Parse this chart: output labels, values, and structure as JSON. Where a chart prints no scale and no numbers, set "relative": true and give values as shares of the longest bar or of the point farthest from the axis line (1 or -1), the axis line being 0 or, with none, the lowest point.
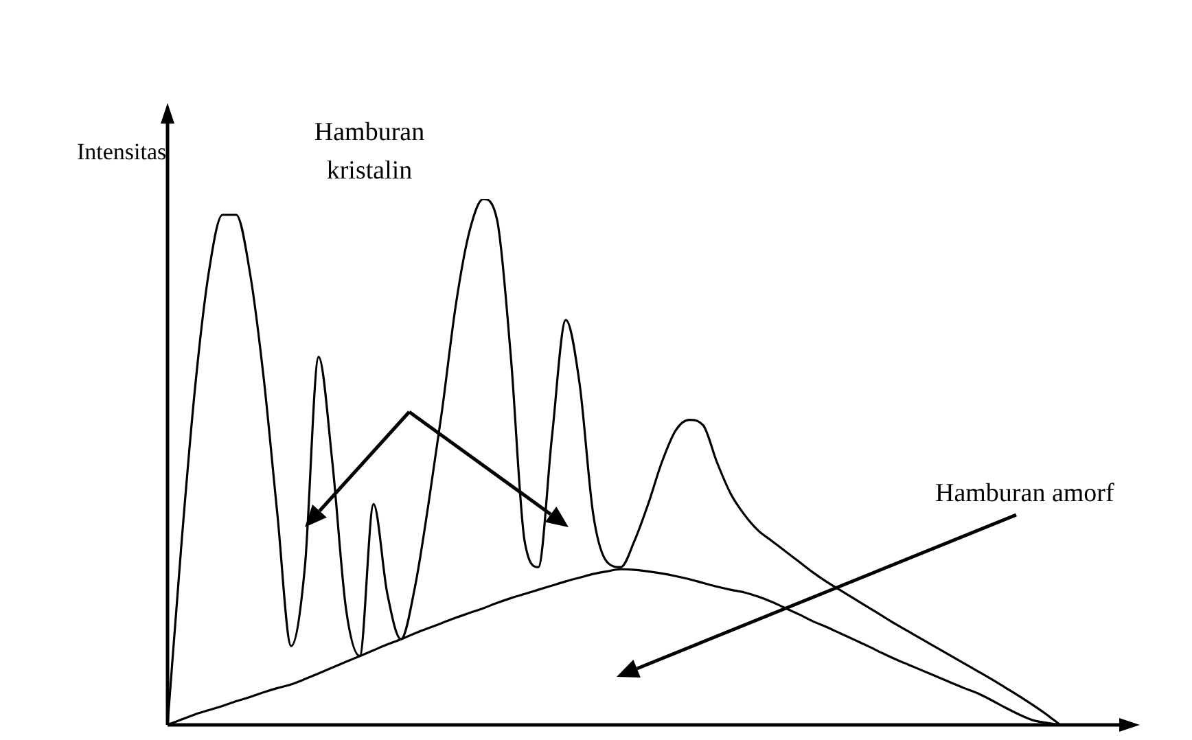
{
  "chart_data": {
    "type": "line",
    "relative": true,
    "ylabel": "Intensitas",
    "legend": false,
    "marker": "none",
    "line_style": "solid",
    "annotations": [
      "Hamburan kristalin",
      "Hamburan amorf"
    ],
    "categories": [
      null,
      null,
      null,
      null,
      null,
      null,
      null,
      null,
      null,
      null,
      null,
      null,
      null,
      null,
      null,
      null,
      null,
      null,
      null,
      null,
      null,
      null,
      null,
      null,
      null,
      null,
      null,
      null,
      null,
      null,
      null,
      null,
      null,
      null,
      null,
      null,
      null,
      null,
      null,
      null,
      null,
      null,
      null,
      null,
      null,
      null,
      null,
      null,
      null,
      null,
      null,
      null,
      null,
      null,
      null,
      null,
      null,
      null,
      null,
      null,
      null,
      null,
      null,
      null,
      null,
      null
    ],
    "series": [
      {
        "color": "#000000",
        "values": [
          0,
          0.34,
          0.64,
          0.86,
          0.97,
          0.97,
          0.86,
          0.66,
          0.4,
          0.15,
          0.3,
          0.7,
          0.5,
          0.22,
          0.131,
          0.42,
          0.25,
          0.163,
          0.26,
          0.42,
          0.6,
          0.8,
          0.94,
          1.0,
          0.96,
          0.7,
          0.35,
          0.3,
          0.55,
          0.77,
          0.65,
          0.4,
          0.31,
          0.3,
          0.35,
          0.42,
          0.5,
          0.56,
          0.58,
          0.57,
          0.5,
          0.44,
          0.4,
          0.37,
          0.35,
          0.33,
          0.31,
          0.29,
          0.272,
          0.256,
          0.24,
          0.224,
          0.208,
          0.192,
          0.177,
          0.162,
          0.147,
          0.132,
          0.117,
          0.102,
          0.087,
          0.071,
          0.055,
          0.038,
          0.02,
          0
        ]
      },
      {
        "color": "#000000",
        "values": [
          0,
          0.01,
          0.02,
          0.028,
          0.036,
          0.045,
          0.053,
          0.062,
          0.07,
          0.077,
          0.087,
          0.098,
          0.109,
          0.12,
          0.131,
          0.142,
          0.153,
          0.163,
          0.174,
          0.184,
          0.194,
          0.204,
          0.213,
          0.222,
          0.232,
          0.241,
          0.249,
          0.257,
          0.265,
          0.273,
          0.28,
          0.287,
          0.292,
          0.296,
          0.295,
          0.292,
          0.288,
          0.283,
          0.277,
          0.27,
          0.263,
          0.257,
          0.252,
          0.244,
          0.234,
          0.222,
          0.21,
          0.197,
          0.186,
          0.174,
          0.162,
          0.15,
          0.137,
          0.125,
          0.114,
          0.103,
          0.092,
          0.081,
          0.07,
          0.06,
          0.047,
          0.033,
          0.02,
          0.009,
          0.004,
          0
        ]
      }
    ]
  }
}
